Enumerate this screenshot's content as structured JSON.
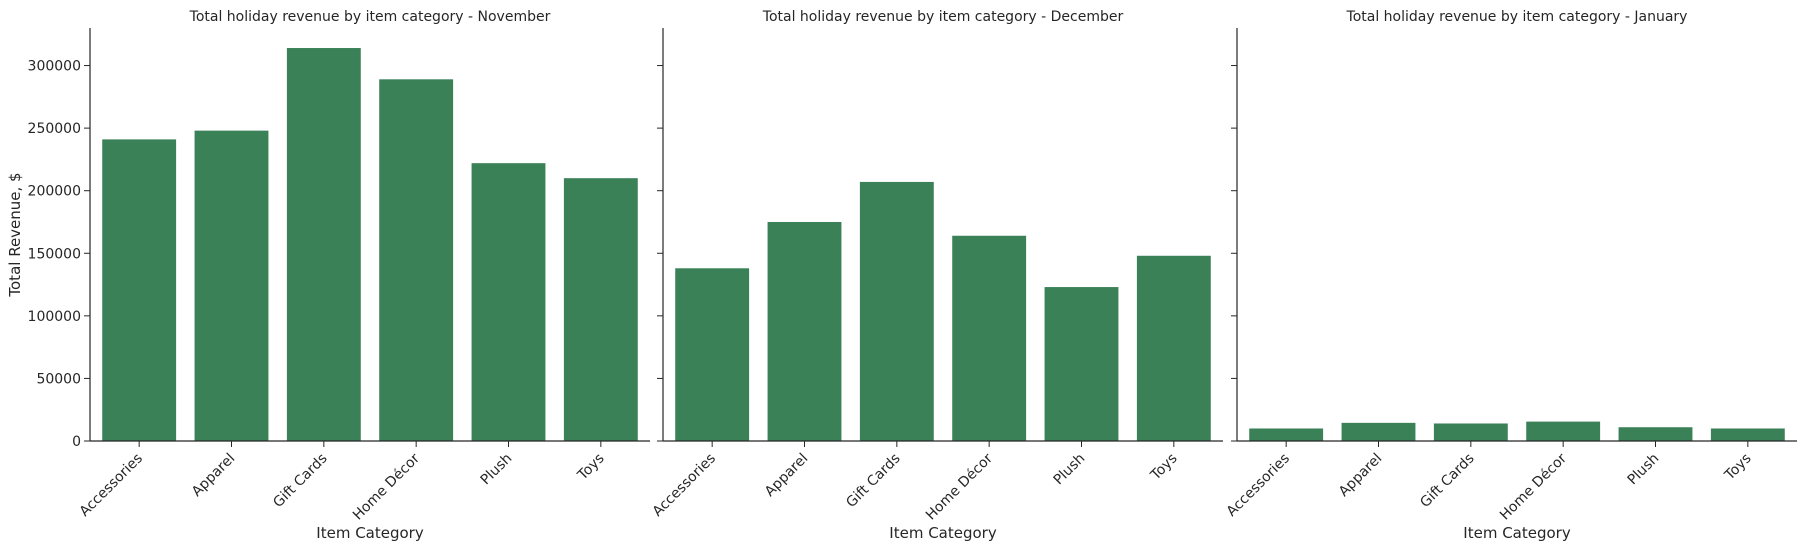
{
  "figure": {
    "ylabel": "Total Revenue, $",
    "xlabel": "Item Category",
    "bar_color": "#3a8158"
  },
  "chart_data": [
    {
      "type": "bar",
      "title": "Total holiday revenue by item category - November",
      "xlabel": "Item Category",
      "ylabel": "Total Revenue, $",
      "categories": [
        "Accessories",
        "Apparel",
        "Gift Cards",
        "Home Décor",
        "Plush",
        "Toys"
      ],
      "values": [
        241000,
        248000,
        314000,
        289000,
        222000,
        210000
      ],
      "ylim": [
        0,
        330000
      ],
      "yticks": [
        0,
        50000,
        100000,
        150000,
        200000,
        250000,
        300000
      ],
      "grid": false
    },
    {
      "type": "bar",
      "title": "Total holiday revenue by item category - December",
      "xlabel": "Item Category",
      "categories": [
        "Accessories",
        "Apparel",
        "Gift Cards",
        "Home Décor",
        "Plush",
        "Toys"
      ],
      "values": [
        138000,
        175000,
        207000,
        164000,
        123000,
        148000
      ],
      "ylim": [
        0,
        330000
      ],
      "grid": false
    },
    {
      "type": "bar",
      "title": "Total holiday revenue by item category - January",
      "xlabel": "Item Category",
      "categories": [
        "Accessories",
        "Apparel",
        "Gift Cards",
        "Home Décor",
        "Plush",
        "Toys"
      ],
      "values": [
        10000,
        14500,
        14000,
        15500,
        11000,
        10000
      ],
      "ylim": [
        0,
        330000
      ],
      "grid": false
    }
  ]
}
